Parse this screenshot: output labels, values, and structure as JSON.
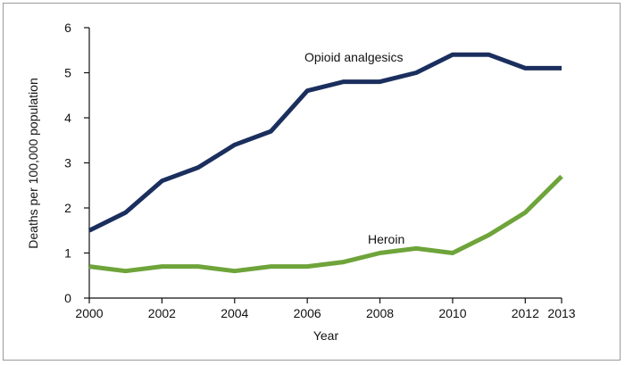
{
  "chart_data": {
    "type": "line",
    "title": "",
    "xlabel": "Year",
    "ylabel": "Deaths per 100,000 population",
    "xlim": [
      2000,
      2013
    ],
    "ylim": [
      0,
      6
    ],
    "x_ticks": [
      2000,
      2002,
      2004,
      2006,
      2008,
      2010,
      2012,
      2013
    ],
    "y_ticks": [
      0,
      1,
      2,
      3,
      4,
      5,
      6
    ],
    "grid": false,
    "legend": "none (series labeled directly on the lines)",
    "x": [
      2000,
      2001,
      2002,
      2003,
      2004,
      2005,
      2006,
      2007,
      2008,
      2009,
      2010,
      2011,
      2012,
      2013
    ],
    "series": [
      {
        "name": "Opioid analgesics",
        "color": "#1b2f5e",
        "values": [
          1.5,
          1.9,
          2.6,
          2.9,
          3.4,
          3.7,
          4.6,
          4.8,
          4.8,
          5.0,
          5.4,
          5.4,
          5.1,
          5.1
        ]
      },
      {
        "name": "Heroin",
        "color": "#6ea43a",
        "values": [
          0.7,
          0.6,
          0.7,
          0.7,
          0.6,
          0.7,
          0.7,
          0.8,
          1.0,
          1.1,
          1.0,
          1.4,
          1.9,
          2.7
        ]
      }
    ]
  }
}
